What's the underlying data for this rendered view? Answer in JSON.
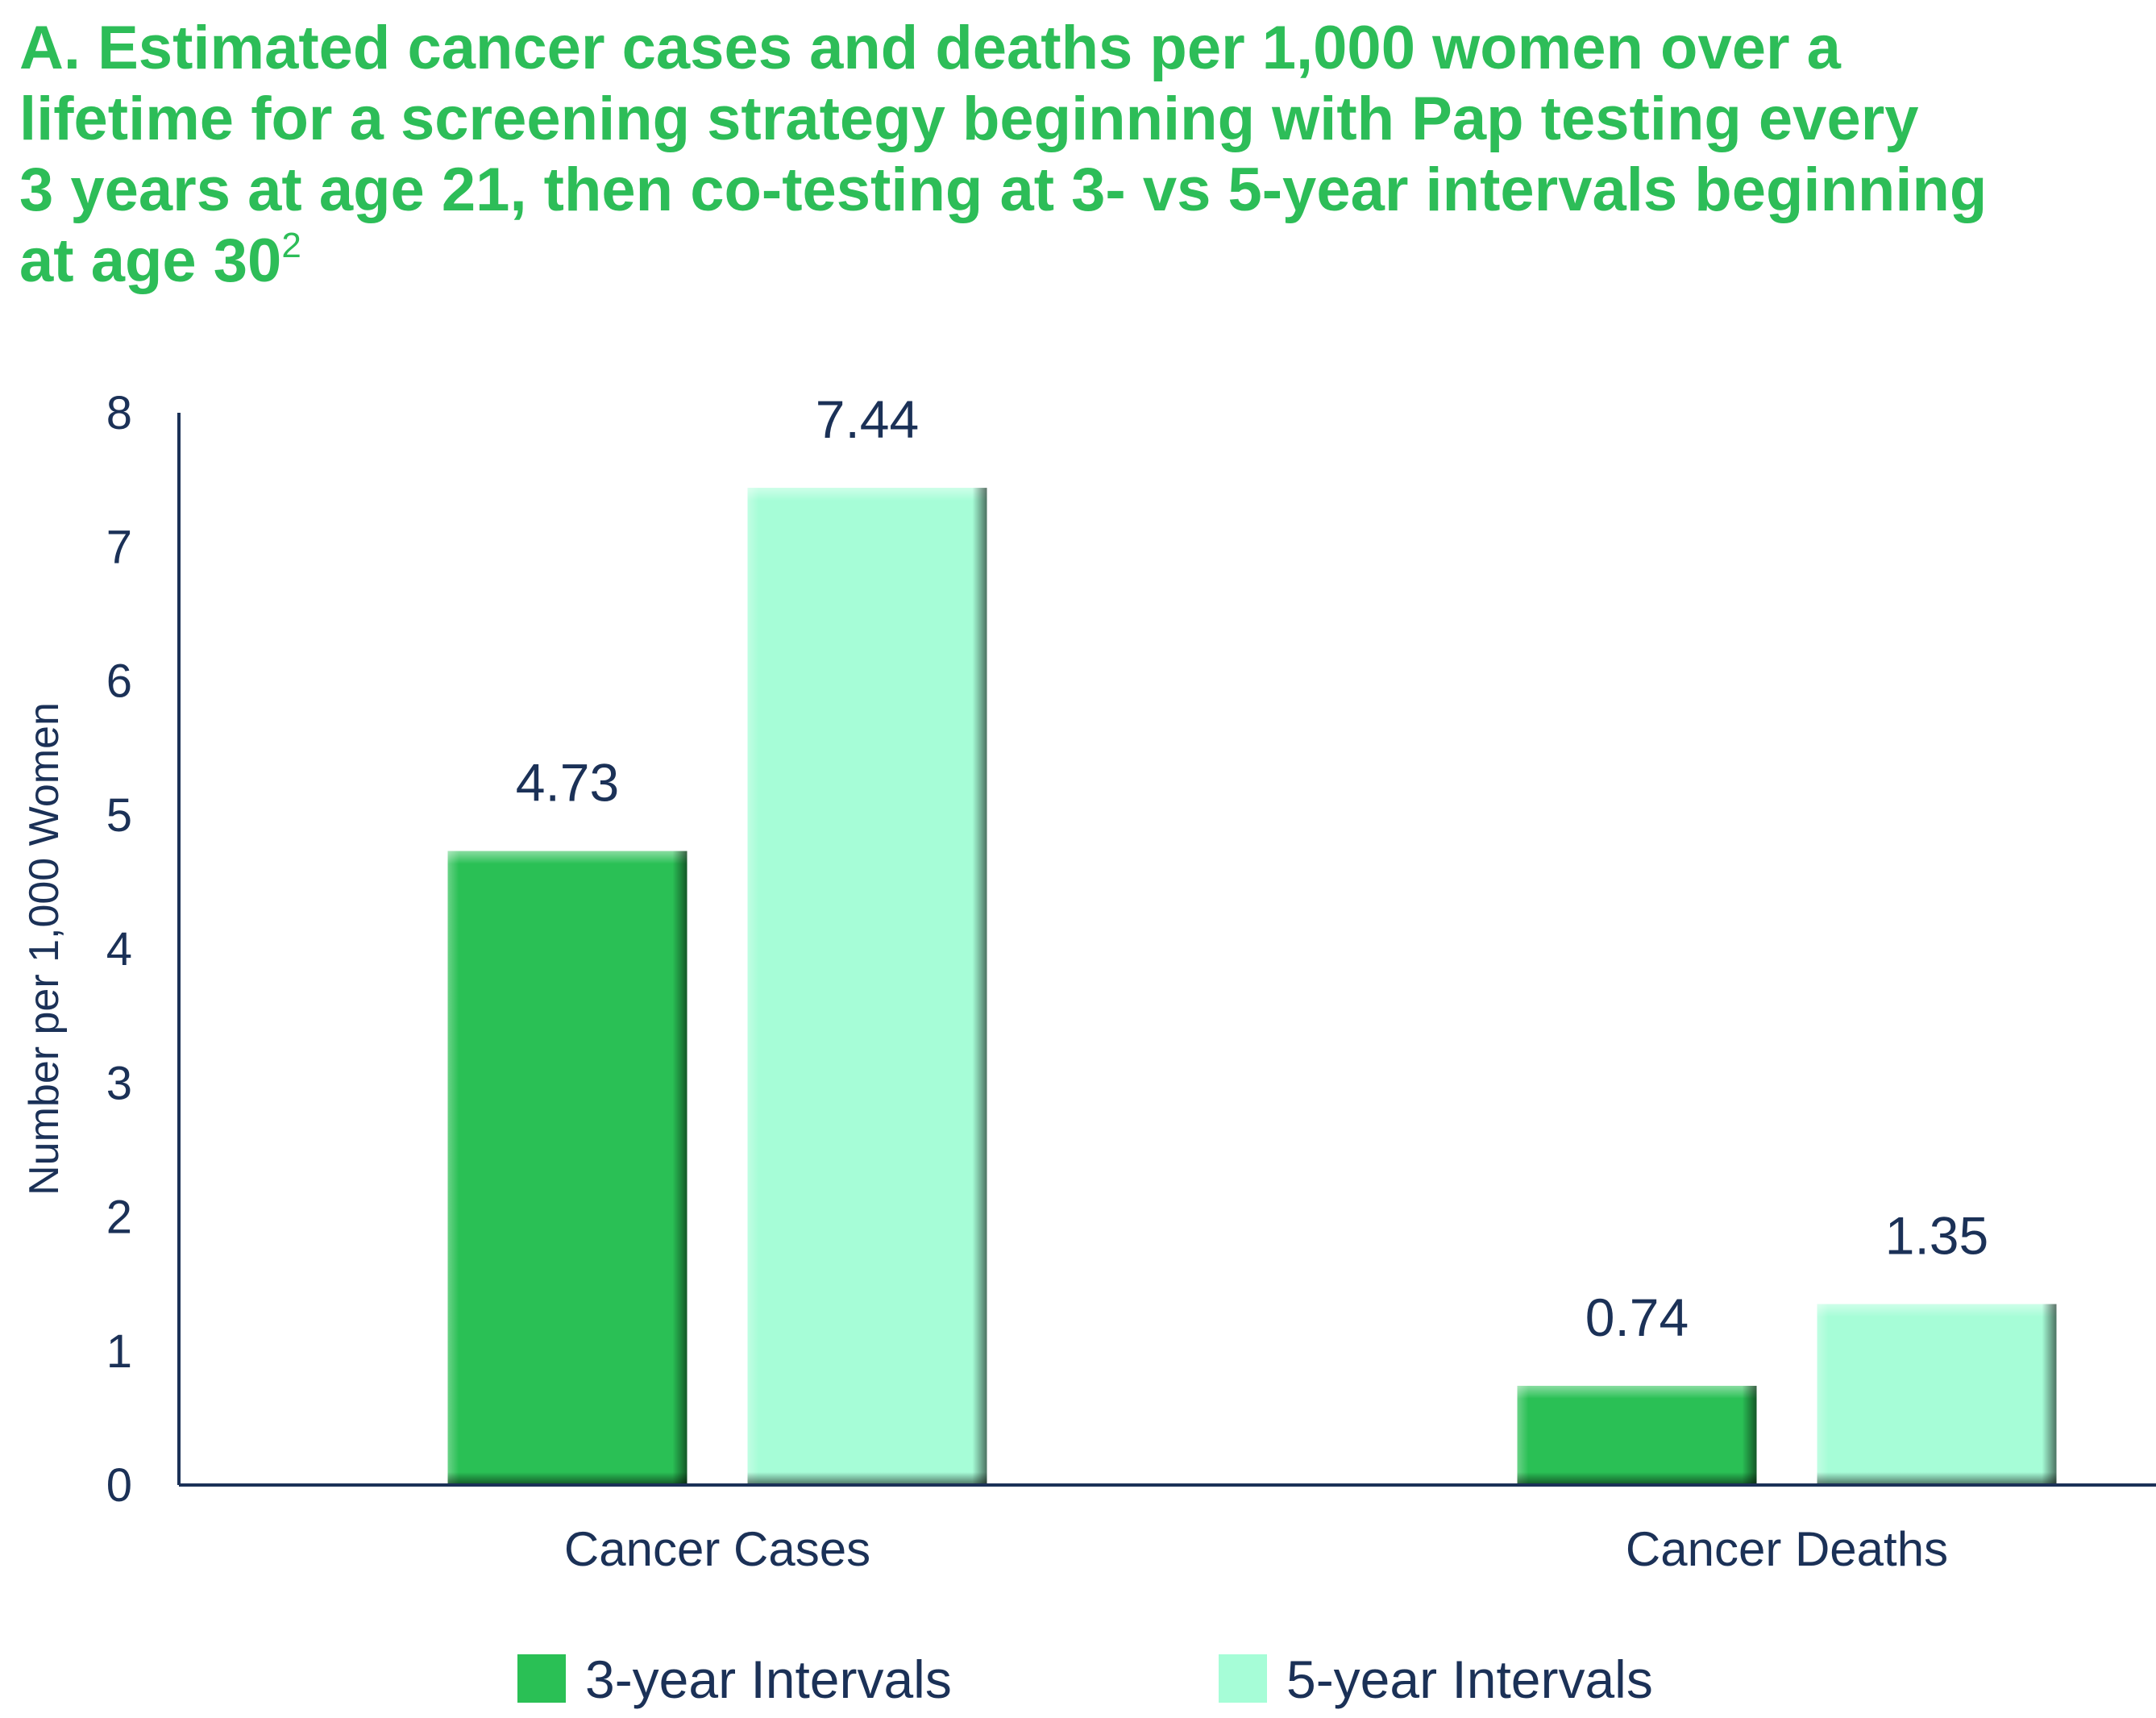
{
  "title": {
    "lines": [
      "A. Estimated cancer cases and deaths per 1,000 women over a",
      "lifetime for a screening strategy beginning with Pap testing every",
      "3 years at age 21, then co-testing at 3- vs 5-year intervals beginning",
      "at age 30"
    ],
    "superscript": "2"
  },
  "colors": {
    "title": "#2dbd58",
    "text": "#1b3157",
    "axis": "#1b3157",
    "series_3yr": "#2ac055",
    "series_5yr": "#a6fdd7"
  },
  "chart_data": {
    "type": "bar",
    "title": "A. Estimated cancer cases and deaths per 1,000 women over a lifetime for a screening strategy beginning with Pap testing every 3 years at age 21, then co-testing at 3- vs 5-year intervals beginning at age 30",
    "categories": [
      "Cancer Cases",
      "Cancer Deaths"
    ],
    "series": [
      {
        "name": "3-year Intervals",
        "values": [
          4.73,
          0.74
        ],
        "labels": [
          "4.73",
          "0.74"
        ]
      },
      {
        "name": "5-year Intervals",
        "values": [
          7.44,
          1.35
        ],
        "labels": [
          "7.44",
          "1.35"
        ]
      }
    ],
    "xlabel": "",
    "ylabel": "Number per 1,000 Women",
    "ylim": [
      0,
      8
    ],
    "yticks": [
      "0",
      "1",
      "2",
      "3",
      "4",
      "5",
      "6",
      "7",
      "8"
    ],
    "grid": false,
    "legend_position": "bottom"
  }
}
